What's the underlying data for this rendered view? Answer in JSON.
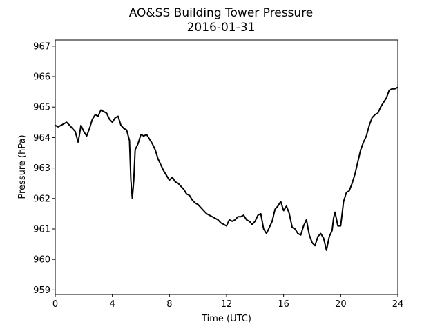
{
  "chart_data": {
    "type": "line",
    "title": "AO&SS Building Tower Pressure",
    "subtitle": "2016-01-31",
    "xlabel": "Time (UTC)",
    "ylabel": "Pressure (hPa)",
    "xlim": [
      0,
      24
    ],
    "ylim": [
      958.85,
      967.2
    ],
    "xticks": [
      0,
      4,
      8,
      12,
      16,
      20,
      24
    ],
    "yticks": [
      959,
      960,
      961,
      962,
      963,
      964,
      965,
      966,
      967
    ],
    "grid": false,
    "line_color": "#000000",
    "series": [
      {
        "x": [
          0,
          0.2,
          0.4,
          0.6,
          0.8,
          1.0,
          1.2,
          1.4,
          1.6,
          1.7,
          1.8,
          2.0,
          2.2,
          2.4,
          2.6,
          2.8,
          3.0,
          3.2,
          3.4,
          3.6,
          3.8,
          4.0,
          4.2,
          4.4,
          4.6,
          4.8,
          5.0,
          5.2,
          5.3,
          5.4,
          5.5,
          5.6,
          5.8,
          6.0,
          6.2,
          6.4,
          6.6,
          6.8,
          7.0,
          7.2,
          7.4,
          7.6,
          7.8,
          8.0,
          8.2,
          8.4,
          8.6,
          8.8,
          9.0,
          9.2,
          9.4,
          9.6,
          9.8,
          10.0,
          10.2,
          10.4,
          10.6,
          10.8,
          11.0,
          11.2,
          11.4,
          11.6,
          11.8,
          12.0,
          12.2,
          12.4,
          12.6,
          12.8,
          13.0,
          13.2,
          13.4,
          13.6,
          13.8,
          14.0,
          14.2,
          14.4,
          14.6,
          14.8,
          15.0,
          15.2,
          15.4,
          15.6,
          15.8,
          16.0,
          16.2,
          16.4,
          16.6,
          16.8,
          17.0,
          17.2,
          17.4,
          17.6,
          17.8,
          18.0,
          18.2,
          18.4,
          18.6,
          18.8,
          19.0,
          19.2,
          19.4,
          19.5,
          19.6,
          19.8,
          20.0,
          20.2,
          20.4,
          20.6,
          20.8,
          21.0,
          21.2,
          21.4,
          21.6,
          21.8,
          22.0,
          22.2,
          22.4,
          22.6,
          22.8,
          23.0,
          23.2,
          23.4,
          23.6,
          23.8,
          24.0
        ],
        "values": [
          964.4,
          964.35,
          964.4,
          964.45,
          964.5,
          964.4,
          964.3,
          964.2,
          963.85,
          964.1,
          964.4,
          964.2,
          964.05,
          964.3,
          964.6,
          964.75,
          964.7,
          964.9,
          964.85,
          964.8,
          964.6,
          964.5,
          964.65,
          964.7,
          964.4,
          964.3,
          964.25,
          963.9,
          962.6,
          962.0,
          962.6,
          963.6,
          963.8,
          964.1,
          964.05,
          964.1,
          963.95,
          963.8,
          963.6,
          963.3,
          963.1,
          962.9,
          962.75,
          962.6,
          962.7,
          962.55,
          962.5,
          962.4,
          962.3,
          962.15,
          962.1,
          961.95,
          961.85,
          961.8,
          961.7,
          961.6,
          961.5,
          961.45,
          961.4,
          961.35,
          961.3,
          961.2,
          961.15,
          961.1,
          961.3,
          961.25,
          961.3,
          961.4,
          961.4,
          961.45,
          961.3,
          961.25,
          961.15,
          961.25,
          961.45,
          961.5,
          961.0,
          960.85,
          961.05,
          961.25,
          961.65,
          961.75,
          961.9,
          961.6,
          961.75,
          961.5,
          961.05,
          961.0,
          960.85,
          960.8,
          961.1,
          961.3,
          960.8,
          960.55,
          960.45,
          960.75,
          960.85,
          960.7,
          960.3,
          960.75,
          960.95,
          961.35,
          961.55,
          961.1,
          961.1,
          961.9,
          962.2,
          962.25,
          962.5,
          962.8,
          963.2,
          963.6,
          963.85,
          964.05,
          964.4,
          964.65,
          964.75,
          964.8,
          965.0,
          965.15,
          965.3,
          965.55,
          965.6,
          965.6,
          965.65
        ]
      }
    ]
  }
}
